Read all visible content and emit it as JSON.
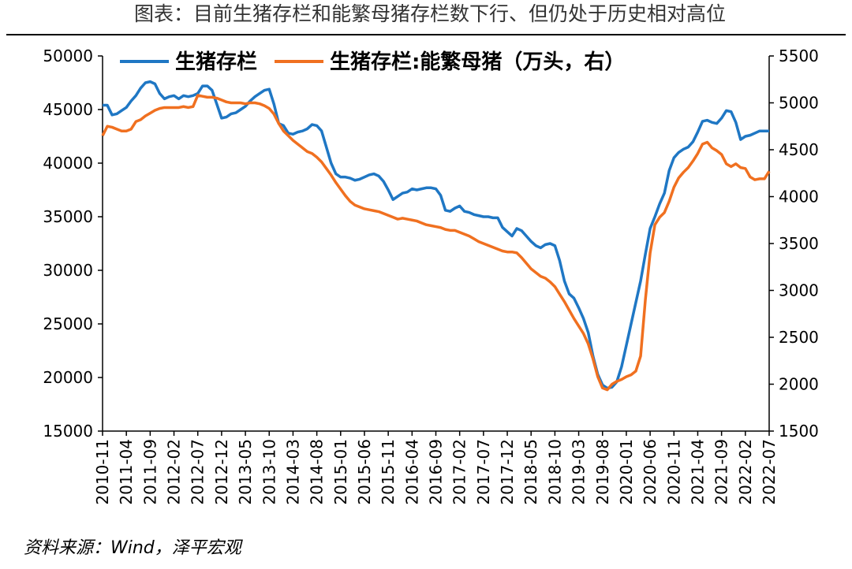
{
  "chart_data": {
    "type": "line",
    "title": "图表：目前生猪存栏和能繁母猪存栏数下行、但仍处于历史相对高位",
    "source": "资料来源：Wind，泽平宏观",
    "categories": [
      "2010-11",
      null,
      null,
      null,
      null,
      "2011-04",
      null,
      null,
      null,
      null,
      "2011-09",
      null,
      null,
      null,
      null,
      "2012-02",
      null,
      null,
      null,
      null,
      "2012-07",
      null,
      null,
      null,
      null,
      "2012-12",
      null,
      null,
      null,
      null,
      "2013-05",
      null,
      null,
      null,
      null,
      "2013-10",
      null,
      null,
      null,
      null,
      "2014-03",
      null,
      null,
      null,
      null,
      "2014-08",
      null,
      null,
      null,
      null,
      "2015-01",
      null,
      null,
      null,
      null,
      "2015-06",
      null,
      null,
      null,
      null,
      "2015-11",
      null,
      null,
      null,
      null,
      "2016-04",
      null,
      null,
      null,
      null,
      "2016-09",
      null,
      null,
      null,
      null,
      "2017-02",
      null,
      null,
      null,
      null,
      "2017-07",
      null,
      null,
      null,
      null,
      "2017-12",
      null,
      null,
      null,
      null,
      "2018-05",
      null,
      null,
      null,
      null,
      "2018-10",
      null,
      null,
      null,
      null,
      "2019-03",
      null,
      null,
      null,
      null,
      "2019-08",
      null,
      null,
      null,
      null,
      "2020-01",
      null,
      null,
      null,
      null,
      "2020-06",
      null,
      null,
      null,
      null,
      "2020-11",
      null,
      null,
      null,
      null,
      "2021-04",
      null,
      null,
      null,
      null,
      "2021-09",
      null,
      null,
      null,
      null,
      "2022-02",
      null,
      null,
      null,
      null,
      "2022-07"
    ],
    "series": [
      {
        "name": "生猪存栏",
        "color": "#1f77c4",
        "axis": "y",
        "values": [
          45400,
          45400,
          44500,
          44600,
          44900,
          45200,
          45800,
          46300,
          47000,
          47500,
          47600,
          47400,
          46500,
          46000,
          46200,
          46300,
          46000,
          46300,
          46200,
          46300,
          46500,
          47200,
          47200,
          46800,
          45500,
          44200,
          44300,
          44600,
          44700,
          45000,
          45300,
          45800,
          46200,
          46500,
          46800,
          46900,
          45500,
          43700,
          43500,
          42800,
          42700,
          42900,
          43000,
          43200,
          43600,
          43500,
          43000,
          41500,
          40000,
          39000,
          38700,
          38700,
          38600,
          38400,
          38500,
          38700,
          38900,
          39000,
          38800,
          38300,
          37500,
          36600,
          36900,
          37200,
          37300,
          37600,
          37500,
          37600,
          37700,
          37700,
          37600,
          37000,
          35600,
          35500,
          35800,
          36000,
          35500,
          35400,
          35200,
          35100,
          35000,
          35000,
          34900,
          34900,
          34000,
          33600,
          33200,
          33900,
          33700,
          33200,
          32700,
          32300,
          32100,
          32400,
          32500,
          32300,
          30900,
          29000,
          27800,
          27400,
          26500,
          25500,
          24200,
          22000,
          20300,
          19300,
          19000,
          19100,
          19600,
          21000,
          23000,
          25000,
          27000,
          29000,
          31500,
          33900,
          35000,
          36200,
          37200,
          39300,
          40500,
          41000,
          41300,
          41500,
          42000,
          42900,
          43900,
          44000,
          43800,
          43700,
          44200,
          44900,
          44800,
          43800,
          42200,
          42500,
          42600,
          42800,
          43000,
          43000,
          43000
        ]
      },
      {
        "name": "生猪存栏:能繁母猪（万头，右）",
        "color": "#f07020",
        "axis": "y2",
        "values": [
          4650,
          4750,
          4740,
          4720,
          4700,
          4700,
          4720,
          4800,
          4820,
          4860,
          4890,
          4920,
          4940,
          4950,
          4950,
          4950,
          4950,
          4960,
          4950,
          4960,
          5080,
          5070,
          5060,
          5060,
          5050,
          5030,
          5010,
          5000,
          5000,
          5000,
          4990,
          5000,
          5000,
          4990,
          4970,
          4940,
          4880,
          4780,
          4700,
          4650,
          4600,
          4560,
          4520,
          4480,
          4460,
          4420,
          4370,
          4300,
          4230,
          4150,
          4080,
          4010,
          3950,
          3910,
          3890,
          3870,
          3860,
          3850,
          3840,
          3820,
          3800,
          3780,
          3760,
          3770,
          3760,
          3750,
          3740,
          3720,
          3700,
          3690,
          3680,
          3670,
          3650,
          3640,
          3640,
          3620,
          3600,
          3580,
          3550,
          3520,
          3500,
          3480,
          3460,
          3440,
          3420,
          3410,
          3410,
          3400,
          3350,
          3290,
          3230,
          3190,
          3150,
          3130,
          3090,
          3040,
          2960,
          2880,
          2790,
          2700,
          2620,
          2540,
          2430,
          2270,
          2080,
          1960,
          1940,
          2000,
          2030,
          2050,
          2080,
          2100,
          2140,
          2300,
          2900,
          3400,
          3700,
          3780,
          3830,
          3950,
          4100,
          4200,
          4260,
          4310,
          4380,
          4460,
          4560,
          4580,
          4520,
          4490,
          4450,
          4350,
          4320,
          4350,
          4310,
          4300,
          4210,
          4180,
          4190,
          4190,
          4270
        ]
      }
    ],
    "ylim": [
      15000,
      50000
    ],
    "yticks": [
      15000,
      20000,
      25000,
      30000,
      35000,
      40000,
      45000,
      50000
    ],
    "y2lim": [
      1500,
      5500
    ],
    "y2ticks": [
      1500,
      2000,
      2500,
      3000,
      3500,
      4000,
      4500,
      5000,
      5500
    ],
    "grid": false,
    "legend": "top"
  }
}
